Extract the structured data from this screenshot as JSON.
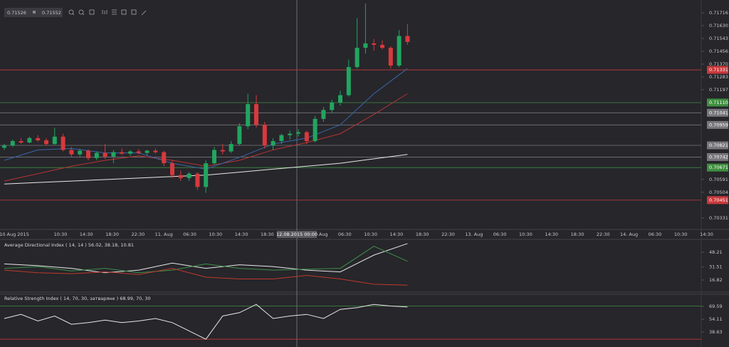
{
  "toolbar": {
    "bid": "0.71526",
    "ask": "0.71552"
  },
  "chart_data": [
    {
      "type": "candlestick",
      "ylim": [
        0.70253,
        0.71803
      ],
      "yticks": [
        {
          "value": 0.71716,
          "label": "0.71716"
        },
        {
          "value": 0.7163,
          "label": "0.71630"
        },
        {
          "value": 0.71543,
          "label": "0.71543"
        },
        {
          "value": 0.71456,
          "label": "0.71456"
        },
        {
          "value": 0.7137,
          "label": "0.71370"
        },
        {
          "value": 0.71283,
          "label": "0.71283"
        },
        {
          "value": 0.71197,
          "label": "0.71197"
        },
        {
          "value": 0.70591,
          "label": "0.70591"
        },
        {
          "value": 0.70504,
          "label": "0.70504"
        },
        {
          "value": 0.70331,
          "label": "0.70331"
        }
      ],
      "levels": [
        {
          "value": 0.71331,
          "label": "0.71331",
          "color": "#c9393b"
        },
        {
          "value": 0.7111,
          "label": "0.71110",
          "color": "#3f8f3f"
        },
        {
          "value": 0.71041,
          "label": "0.71041",
          "color": "#77777c"
        },
        {
          "value": 0.70959,
          "label": "0.70959",
          "color": "#77777c"
        },
        {
          "value": 0.70821,
          "label": "0.70821",
          "color": "#77777c"
        },
        {
          "value": 0.70742,
          "label": "0.70742",
          "color": "#77777c"
        },
        {
          "value": 0.70671,
          "label": "0.70671",
          "color": "#3f8f3f"
        },
        {
          "value": 0.70451,
          "label": "0.70451",
          "color": "#c9393b"
        }
      ],
      "time_labels": [
        "10 Aug 2015",
        "10:30",
        "14:30",
        "18:30",
        "22:30",
        "11. Aug",
        "06:30",
        "10:30",
        "14:30",
        "18:30",
        "22:30",
        "12. Aug",
        "06:30",
        "10:30",
        "14:30",
        "18:30",
        "22:30",
        "13. Aug",
        "06:30",
        "10:30",
        "14:30",
        "18:30",
        "22:30",
        "14. Aug",
        "06:30",
        "10:30",
        "14:30"
      ],
      "crosshair_label": "12.08.2015 00:00",
      "up_color": "#22a55f",
      "down_color": "#d8393c",
      "open": [
        0.70805,
        0.7082,
        0.7085,
        0.7084,
        0.7087,
        0.70855,
        0.7083,
        0.7088,
        0.7079,
        0.7076,
        0.70785,
        0.70735,
        0.7077,
        0.70745,
        0.70775,
        0.70765,
        0.7078,
        0.7077,
        0.70785,
        0.70775,
        0.707,
        0.7062,
        0.706,
        0.7063,
        0.7054,
        0.707,
        0.7079,
        0.7078,
        0.7083,
        0.7095,
        0.711,
        0.7096,
        0.7082,
        0.7085,
        0.7089,
        0.709,
        0.7091,
        0.7085,
        0.71,
        0.7106,
        0.7111,
        0.7116,
        0.7135,
        0.7148,
        0.7151,
        0.715,
        0.7148,
        0.7136,
        0.7156
      ],
      "high": [
        0.7083,
        0.7086,
        0.7087,
        0.7088,
        0.7089,
        0.7087,
        0.7094,
        0.709,
        0.7081,
        0.708,
        0.70795,
        0.7078,
        0.7083,
        0.7079,
        0.708,
        0.7079,
        0.70795,
        0.7079,
        0.708,
        0.70785,
        0.7072,
        0.7065,
        0.7064,
        0.7064,
        0.7072,
        0.7081,
        0.7083,
        0.7085,
        0.7097,
        0.7117,
        0.7116,
        0.7098,
        0.7087,
        0.709,
        0.7092,
        0.7093,
        0.7092,
        0.7102,
        0.7108,
        0.7113,
        0.7119,
        0.714,
        0.7168,
        0.7178,
        0.7154,
        0.7153,
        0.7149,
        0.716,
        0.7164
      ],
      "low": [
        0.7079,
        0.7081,
        0.7083,
        0.70835,
        0.70845,
        0.7082,
        0.70825,
        0.7078,
        0.7074,
        0.70745,
        0.7072,
        0.7072,
        0.7073,
        0.707,
        0.70755,
        0.7075,
        0.7076,
        0.70755,
        0.70765,
        0.7068,
        0.706,
        0.7058,
        0.7058,
        0.7052,
        0.705,
        0.7069,
        0.7076,
        0.7077,
        0.7082,
        0.7093,
        0.7094,
        0.708,
        0.7079,
        0.7083,
        0.7086,
        0.7088,
        0.7083,
        0.7084,
        0.7098,
        0.7104,
        0.7109,
        0.7115,
        0.7134,
        0.7144,
        0.7146,
        0.7147,
        0.7134,
        0.7135,
        0.715
      ],
      "close": [
        0.7082,
        0.7085,
        0.7084,
        0.7087,
        0.70855,
        0.7083,
        0.7088,
        0.7079,
        0.7076,
        0.70785,
        0.70735,
        0.7077,
        0.70745,
        0.70775,
        0.70765,
        0.7078,
        0.7077,
        0.70785,
        0.70775,
        0.707,
        0.7062,
        0.706,
        0.7063,
        0.7054,
        0.707,
        0.7079,
        0.7078,
        0.7083,
        0.7095,
        0.711,
        0.7096,
        0.7082,
        0.7085,
        0.7089,
        0.709,
        0.7091,
        0.7085,
        0.71,
        0.7106,
        0.7111,
        0.7116,
        0.7135,
        0.7148,
        0.7151,
        0.715,
        0.7148,
        0.7136,
        0.7156,
        0.7152
      ],
      "lines": [
        {
          "color": "#e8e8e8",
          "values": [
            0.7056,
            0.7057,
            0.7058,
            0.7059,
            0.706,
            0.7061,
            0.7062,
            0.7064,
            0.7066,
            0.7068,
            0.707,
            0.7073,
            0.7076
          ]
        },
        {
          "color": "#b83434",
          "values": [
            0.7058,
            0.7063,
            0.7068,
            0.7072,
            0.7075,
            0.7072,
            0.7068,
            0.7072,
            0.7079,
            0.7084,
            0.709,
            0.7103,
            0.7117
          ]
        },
        {
          "color": "#3b67a8",
          "values": [
            0.7072,
            0.7079,
            0.708,
            0.7077,
            0.7077,
            0.707,
            0.7066,
            0.7074,
            0.7083,
            0.7087,
            0.7096,
            0.7117,
            0.7134
          ]
        }
      ]
    },
    {
      "type": "line",
      "title": "Average Directional Index ( 14, 14 ) 56.02, 38.18, 10.81",
      "ylim": [
        3.1,
        62.7
      ],
      "yticks": [
        48.21,
        31.51,
        16.82
      ],
      "series": [
        {
          "color": "#e8e8e8",
          "values": [
            35,
            33,
            30,
            25,
            28,
            36,
            30,
            34,
            32,
            28,
            26,
            45,
            58
          ]
        },
        {
          "color": "#3f8f4a",
          "values": [
            30,
            32,
            27,
            30,
            25,
            28,
            35,
            30,
            28,
            29,
            30,
            55,
            38
          ]
        },
        {
          "color": "#c0392b",
          "values": [
            28,
            25,
            24,
            26,
            23,
            30,
            20,
            18,
            18,
            22,
            18,
            12,
            11
          ]
        }
      ]
    },
    {
      "type": "line",
      "title": "Relative Strength Index ( 14, 70, 30, затваряне ) 68.99, 70, 30",
      "ylim": [
        20.6,
        84.2
      ],
      "yticks": [
        69.59,
        54.11,
        38.63
      ],
      "levels": [
        {
          "value": 70,
          "color": "#3f8f3f"
        },
        {
          "value": 30,
          "color": "#c9393b"
        }
      ],
      "series": [
        {
          "color": "#e8e8e8",
          "values": [
            55,
            60,
            52,
            58,
            48,
            50,
            53,
            50,
            52,
            55,
            50,
            40,
            30,
            58,
            62,
            72,
            55,
            58,
            60,
            55,
            66,
            68,
            72,
            70,
            69
          ]
        }
      ]
    }
  ]
}
